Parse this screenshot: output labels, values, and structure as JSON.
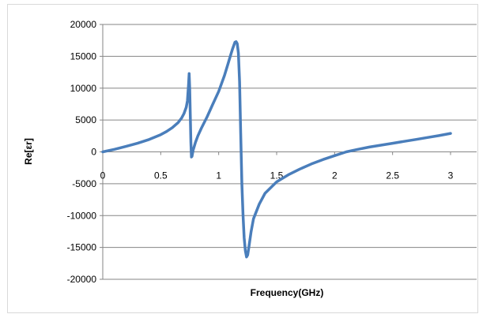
{
  "chart_data": {
    "type": "line",
    "title": "",
    "xlabel": "Frequency(GHz)",
    "ylabel": "Re[εr]",
    "xlim": [
      0,
      3
    ],
    "ylim": [
      -20000,
      20000
    ],
    "x_ticks": [
      0,
      0.5,
      1,
      1.5,
      2,
      2.5,
      3
    ],
    "x_tick_labels": [
      "0",
      "0.5",
      "1",
      "1.5",
      "2",
      "2.5",
      "3"
    ],
    "y_ticks": [
      20000,
      15000,
      10000,
      5000,
      0,
      -5000,
      -10000,
      -15000,
      -20000
    ],
    "y_tick_labels": [
      "20000",
      "15000",
      "10000",
      "5000",
      "0",
      "-5000",
      "-10000",
      "-15000",
      "-20000"
    ],
    "grid": "horizontal major",
    "legend": "none",
    "series": [
      {
        "color": "#4a7ebb",
        "x": [
          0,
          0.1,
          0.2,
          0.3,
          0.4,
          0.5,
          0.55,
          0.6,
          0.65,
          0.68,
          0.7,
          0.72,
          0.73,
          0.74,
          0.745,
          0.75,
          0.755,
          0.76,
          0.765,
          0.77,
          0.78,
          0.8,
          0.82,
          0.85,
          0.9,
          0.95,
          1.0,
          1.05,
          1.08,
          1.1,
          1.12,
          1.14,
          1.15,
          1.16,
          1.17,
          1.18,
          1.19,
          1.2,
          1.21,
          1.22,
          1.23,
          1.24,
          1.25,
          1.26,
          1.28,
          1.3,
          1.35,
          1.4,
          1.5,
          1.6,
          1.7,
          1.8,
          1.9,
          2.0,
          2.1,
          2.2,
          2.3,
          2.4,
          2.5,
          2.6,
          2.7,
          2.8,
          2.9,
          3.0
        ],
        "y": [
          0,
          400,
          850,
          1350,
          1950,
          2700,
          3200,
          3800,
          4600,
          5300,
          6000,
          7000,
          8000,
          10500,
          12300,
          10000,
          6000,
          1500,
          -800,
          -700,
          300,
          1500,
          2500,
          3700,
          5500,
          7500,
          9500,
          12000,
          13800,
          15000,
          16200,
          17200,
          17300,
          17000,
          15500,
          11000,
          3000,
          -5000,
          -10000,
          -13500,
          -15500,
          -16500,
          -16200,
          -15000,
          -12500,
          -10500,
          -8200,
          -6500,
          -4700,
          -3600,
          -2700,
          -1900,
          -1200,
          -600,
          0,
          400,
          750,
          1050,
          1350,
          1650,
          1950,
          2250,
          2550,
          2900
        ]
      }
    ]
  }
}
